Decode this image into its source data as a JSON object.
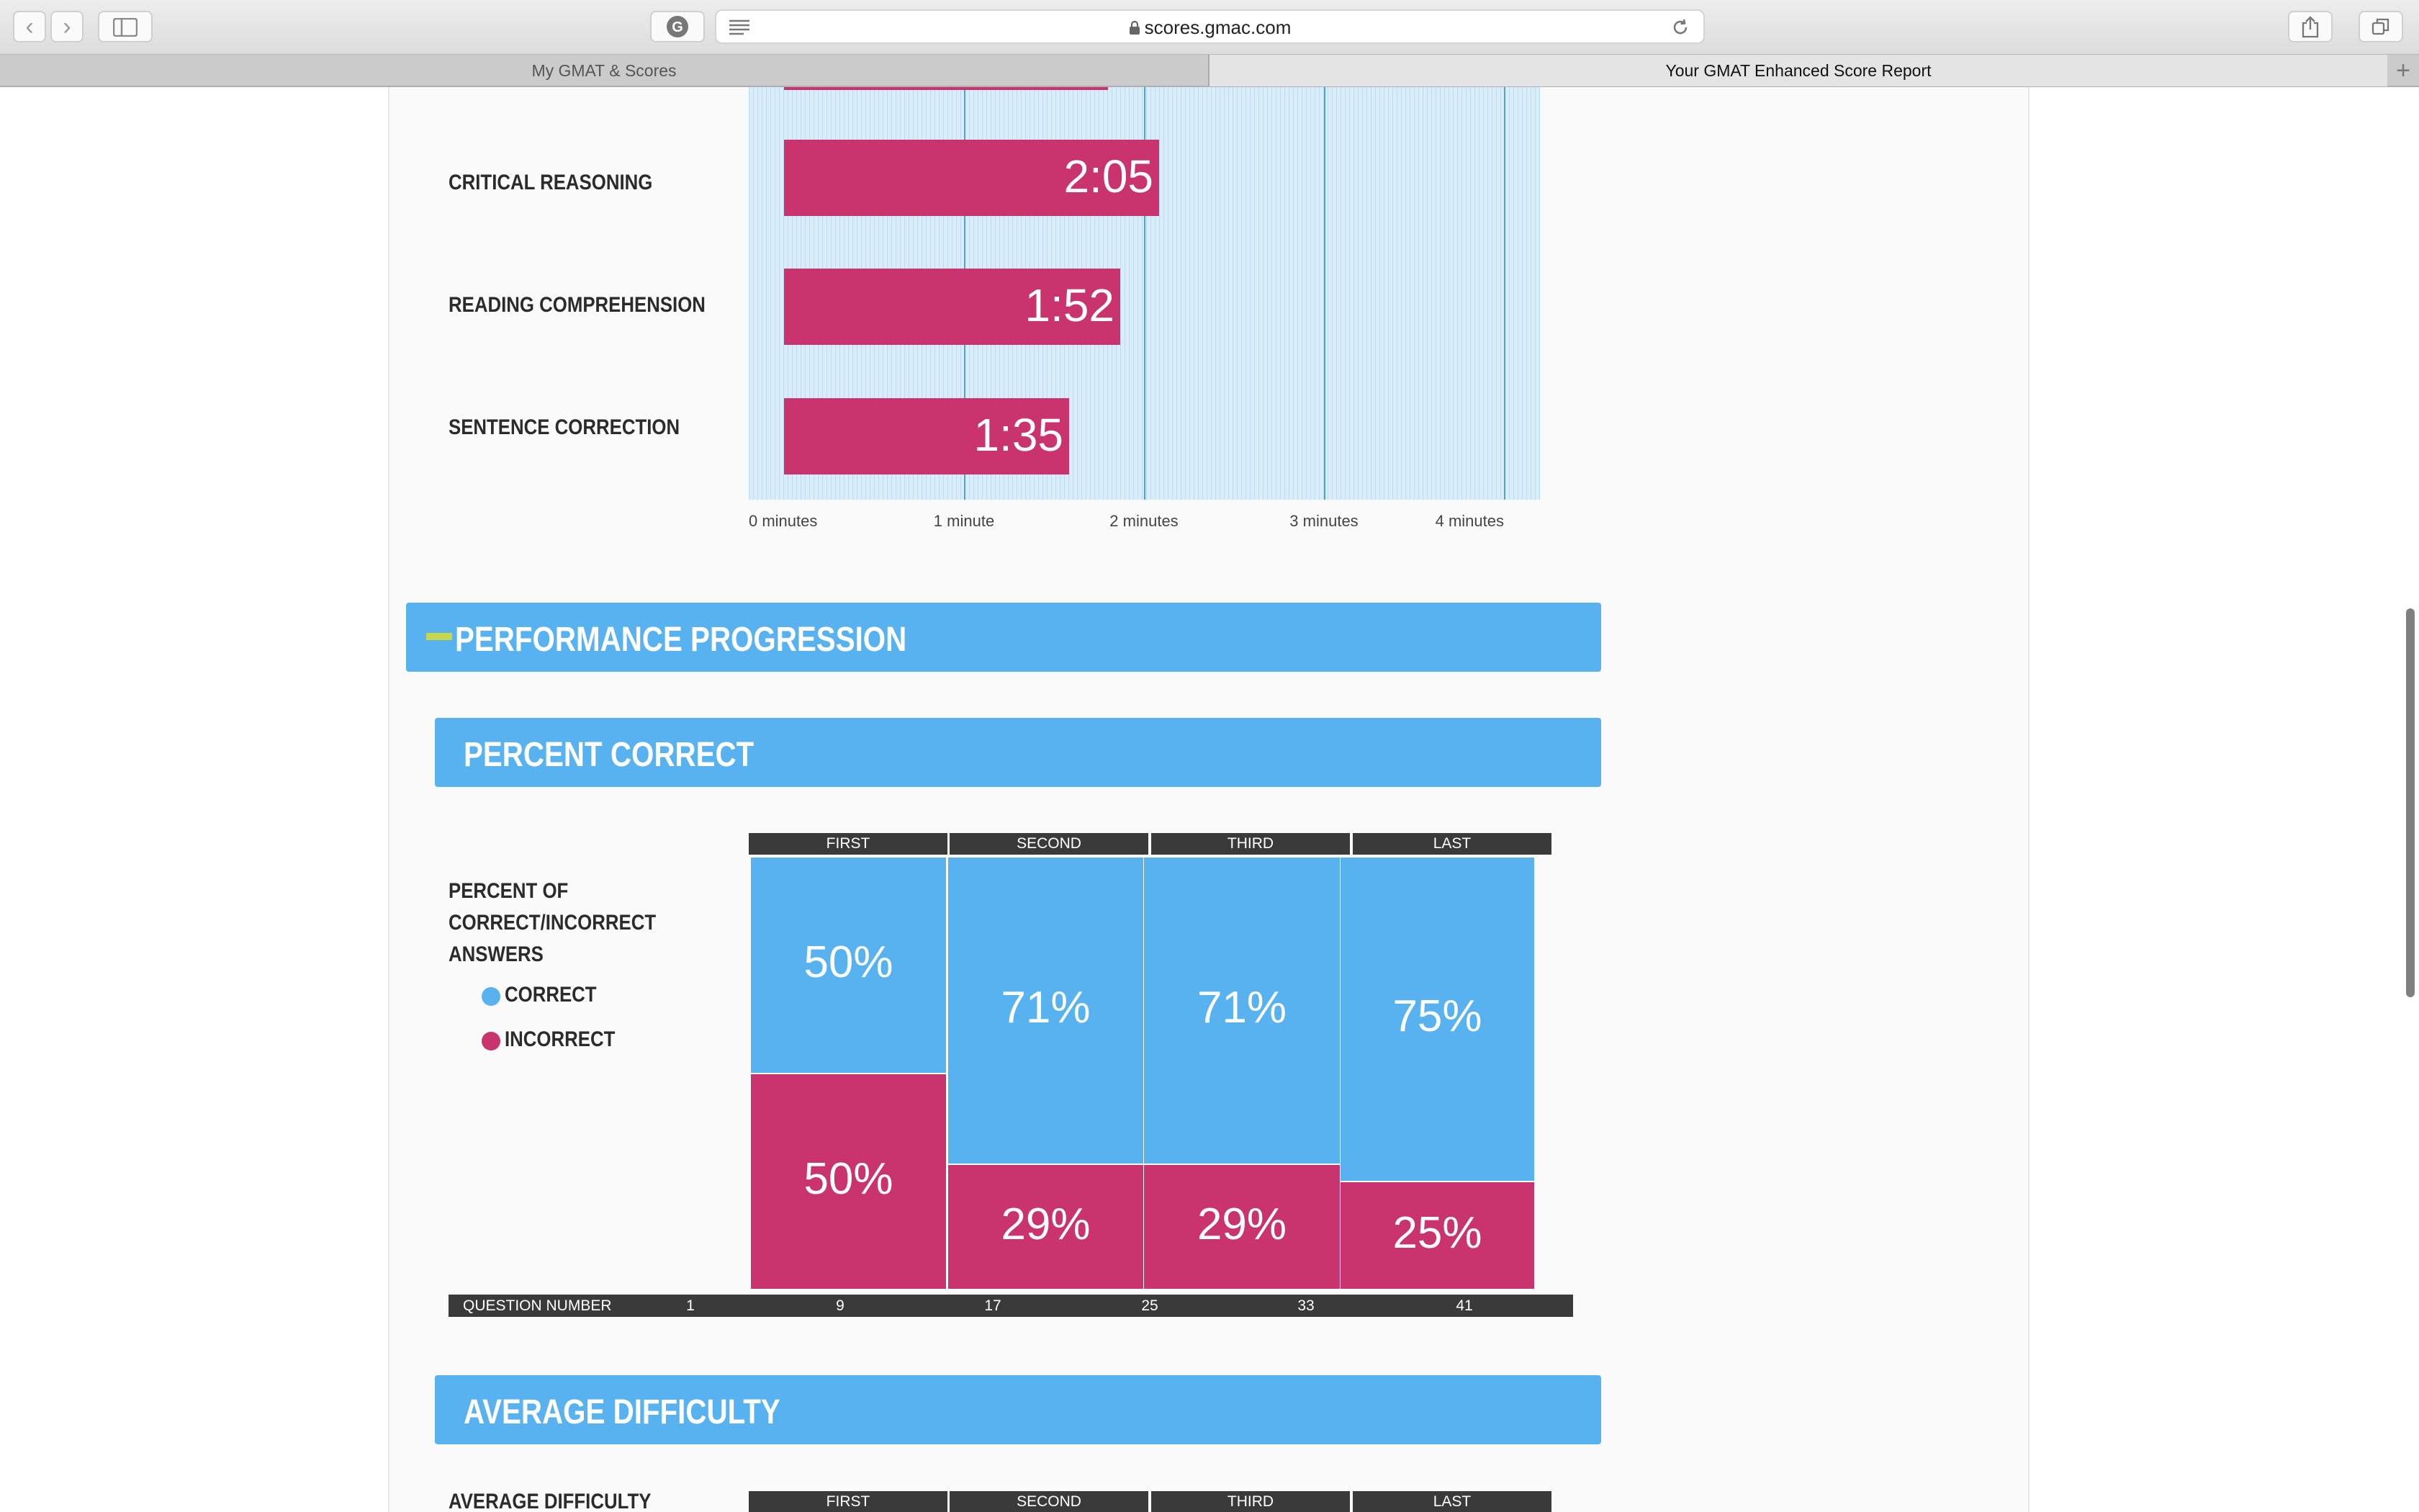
{
  "browser": {
    "url": "scores.gmac.com",
    "tabs": [
      {
        "label": "My GMAT & Scores",
        "active": false
      },
      {
        "label": "Your GMAT Enhanced Score Report",
        "active": true
      }
    ],
    "new_tab_symbol": "+"
  },
  "timing": {
    "rows": [
      {
        "label": "CRITICAL REASONING",
        "time": "2:05",
        "minutes": 2.083
      },
      {
        "label": "READING COMPREHENSION",
        "time": "1:52",
        "minutes": 1.867
      },
      {
        "label": "SENTENCE CORRECTION",
        "time": "1:35",
        "minutes": 1.583
      }
    ],
    "axis_ticks": [
      "0 minutes",
      "1 minute",
      "2 minutes",
      "3 minutes",
      "4 minutes"
    ],
    "axis_max_minutes": 4
  },
  "sections": {
    "performance_title": "PERFORMANCE PROGRESSION",
    "percent_correct_title": "PERCENT CORRECT",
    "average_difficulty_title": "AVERAGE DIFFICULTY"
  },
  "percent_chart": {
    "label_lines": [
      "PERCENT OF",
      "CORRECT/INCORRECT",
      "ANSWERS"
    ],
    "legend": [
      {
        "label": "CORRECT",
        "color": "#58b2ef"
      },
      {
        "label": "INCORRECT",
        "color": "#c9346f"
      }
    ],
    "columns": [
      "FIRST",
      "SECOND",
      "THIRD",
      "LAST"
    ],
    "correct": [
      50,
      71,
      71,
      75
    ],
    "incorrect": [
      50,
      29,
      29,
      25
    ],
    "correct_labels": [
      "50%",
      "71%",
      "71%",
      "75%"
    ],
    "incorrect_labels": [
      "50%",
      "29%",
      "29%",
      "25%"
    ],
    "question_axis_label": "QUESTION NUMBER",
    "question_ticks": [
      "1",
      "9",
      "17",
      "25",
      "33",
      "41"
    ]
  },
  "difficulty_chart": {
    "label": "AVERAGE DIFFICULTY",
    "columns": [
      "FIRST",
      "SECOND",
      "THIRD",
      "LAST"
    ]
  },
  "colors": {
    "blue": "#58b2ef",
    "pink": "#c9346f",
    "dark": "#3a3a3a",
    "chart_bg": "#d9ecf8",
    "accent": "#c6d84a"
  }
}
